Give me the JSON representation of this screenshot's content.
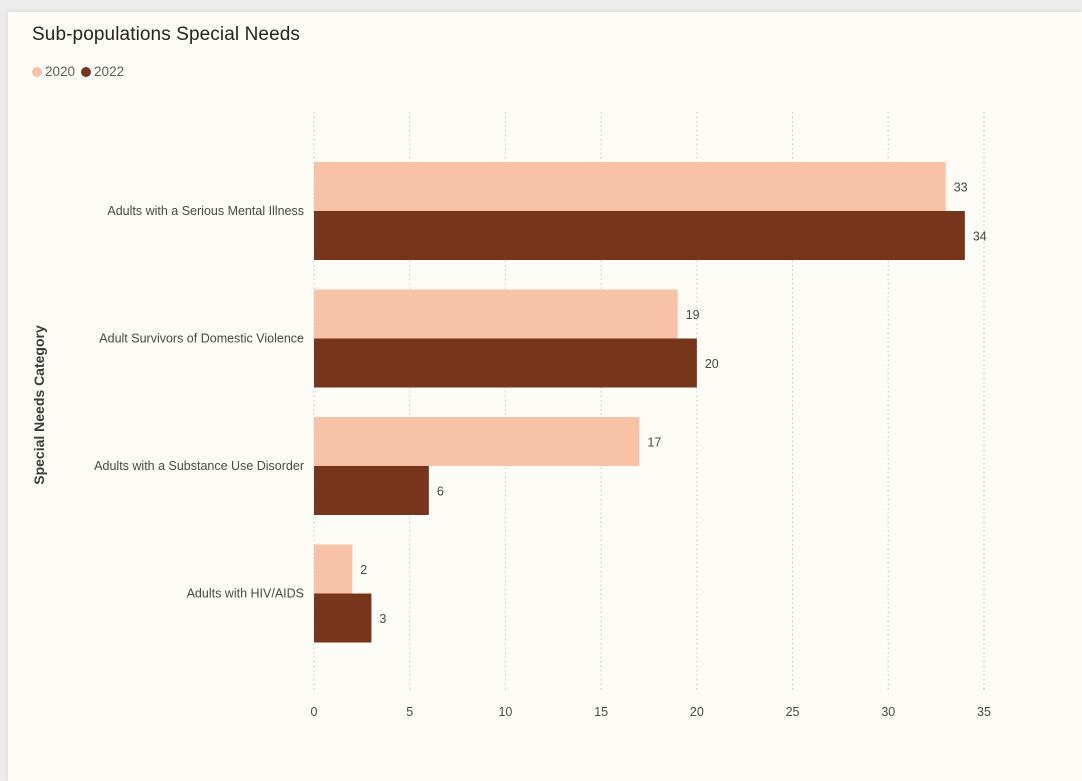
{
  "title": "Sub-populations Special Needs",
  "legend": [
    {
      "label": "2020",
      "color": "#f7c2a6"
    },
    {
      "label": "2022",
      "color": "#77361b"
    }
  ],
  "chart_data": {
    "type": "bar",
    "orientation": "horizontal",
    "title": "Sub-populations Special Needs",
    "xlabel": "",
    "ylabel": "Special Needs Category",
    "categories": [
      "Adults with a Serious Mental Illness",
      "Adult Survivors of Domestic Violence",
      "Adults with a Substance Use Disorder",
      "Adults with HIV/AIDS"
    ],
    "series": [
      {
        "name": "2020",
        "color": "#f7c2a6",
        "values": [
          33,
          19,
          17,
          2
        ]
      },
      {
        "name": "2022",
        "color": "#77361b",
        "values": [
          34,
          20,
          6,
          3
        ]
      }
    ],
    "xlim": [
      0,
      35
    ],
    "xticks": [
      "0",
      "5",
      "10",
      "15",
      "20",
      "25",
      "30",
      "35"
    ],
    "grid": "vertical dotted",
    "legend_position": "top-left"
  }
}
